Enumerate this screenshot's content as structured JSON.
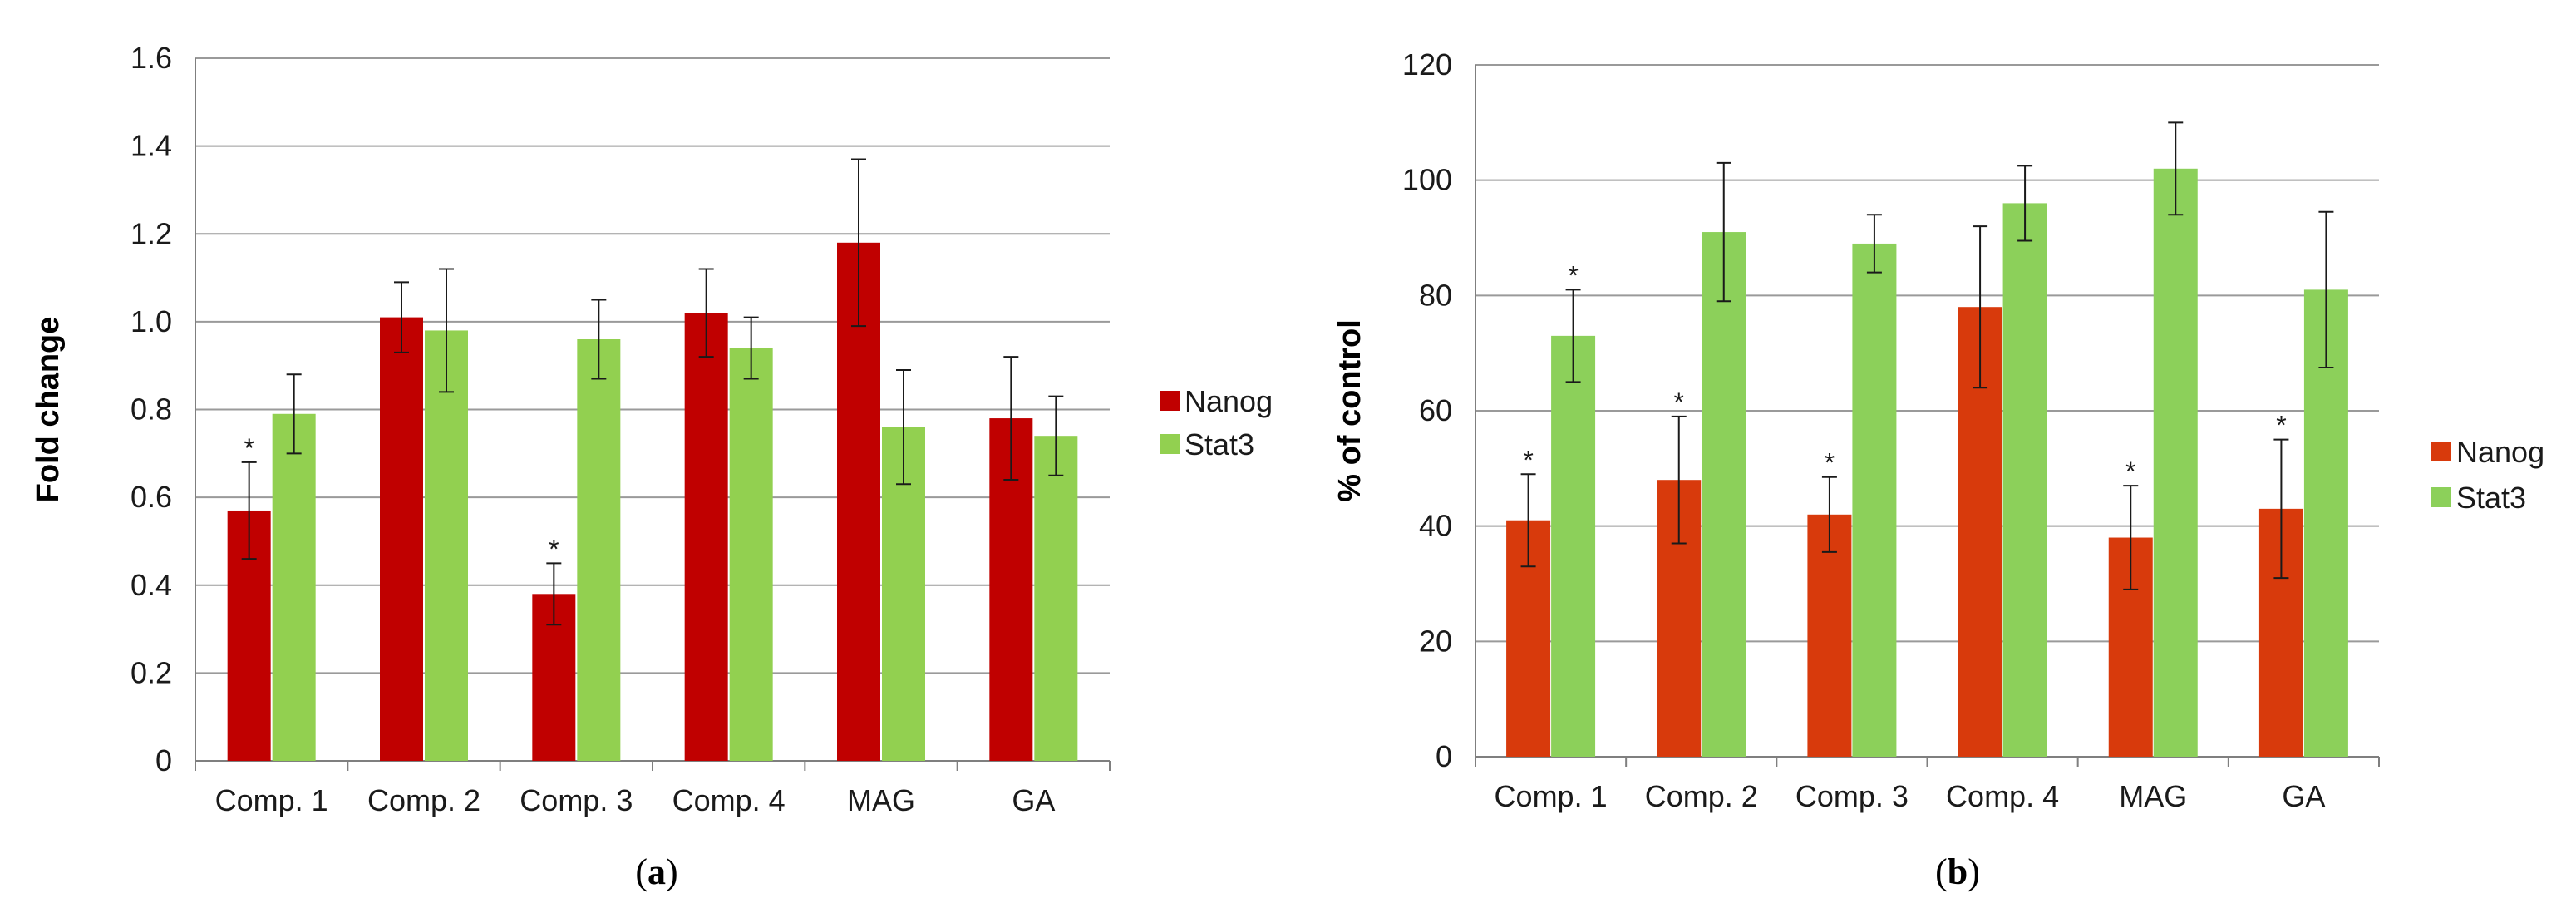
{
  "chart_data": [
    {
      "panel": "(a)",
      "panel_label": {
        "open": "(",
        "letter": "a",
        "close": ")"
      },
      "type": "bar",
      "ylabel": "Fold change",
      "xlabel": "",
      "ylim": [
        0,
        1.6
      ],
      "yticks": [
        "0",
        "0.2",
        "0.4",
        "0.6",
        "0.8",
        "1.0",
        "1.2",
        "1.4",
        "1.6"
      ],
      "ytick_values": [
        0,
        0.2,
        0.4,
        0.6,
        0.8,
        1.0,
        1.2,
        1.4,
        1.6
      ],
      "categories": [
        "Comp. 1",
        "Comp. 2",
        "Comp. 3",
        "Comp. 4",
        "MAG",
        "GA"
      ],
      "legend_position": "right",
      "series": [
        {
          "name": "Nanog",
          "color": "#c00000",
          "values": [
            0.57,
            1.01,
            0.38,
            1.02,
            1.18,
            0.78
          ],
          "errors": [
            0.11,
            0.08,
            0.07,
            0.1,
            0.19,
            0.14
          ],
          "significant": [
            "*",
            "",
            "*",
            "",
            "",
            ""
          ]
        },
        {
          "name": "Stat3",
          "color": "#92d050",
          "values": [
            0.79,
            0.98,
            0.96,
            0.94,
            0.76,
            0.74
          ],
          "errors": [
            0.09,
            0.14,
            0.09,
            0.07,
            0.13,
            0.09
          ],
          "significant": [
            "",
            "",
            "",
            "",
            "",
            ""
          ]
        }
      ]
    },
    {
      "panel": "(b)",
      "panel_label": {
        "open": "(",
        "letter": "b",
        "close": ")"
      },
      "type": "bar",
      "ylabel": "% of  control",
      "xlabel": "",
      "ylim": [
        0,
        120
      ],
      "yticks": [
        "0",
        "20",
        "40",
        "60",
        "80",
        "100",
        "120"
      ],
      "ytick_values": [
        0,
        20,
        40,
        60,
        80,
        100,
        120
      ],
      "categories": [
        "Comp. 1",
        "Comp. 2",
        "Comp. 3",
        "Comp. 4",
        "MAG",
        "GA"
      ],
      "legend_position": "right",
      "series": [
        {
          "name": "Nanog",
          "color": "#d83a0c",
          "values": [
            41,
            48,
            42,
            78,
            38,
            43
          ],
          "errors": [
            8,
            11,
            6.5,
            14,
            9,
            12
          ],
          "significant": [
            "*",
            "*",
            "*",
            "",
            "*",
            "*"
          ]
        },
        {
          "name": "Stat3",
          "color": "#8cd05a",
          "values": [
            73,
            91,
            89,
            96,
            102,
            81
          ],
          "errors": [
            8,
            12,
            5,
            6.5,
            8,
            13.5
          ],
          "significant": [
            "*",
            "",
            "",
            "",
            "",
            ""
          ]
        }
      ]
    }
  ]
}
